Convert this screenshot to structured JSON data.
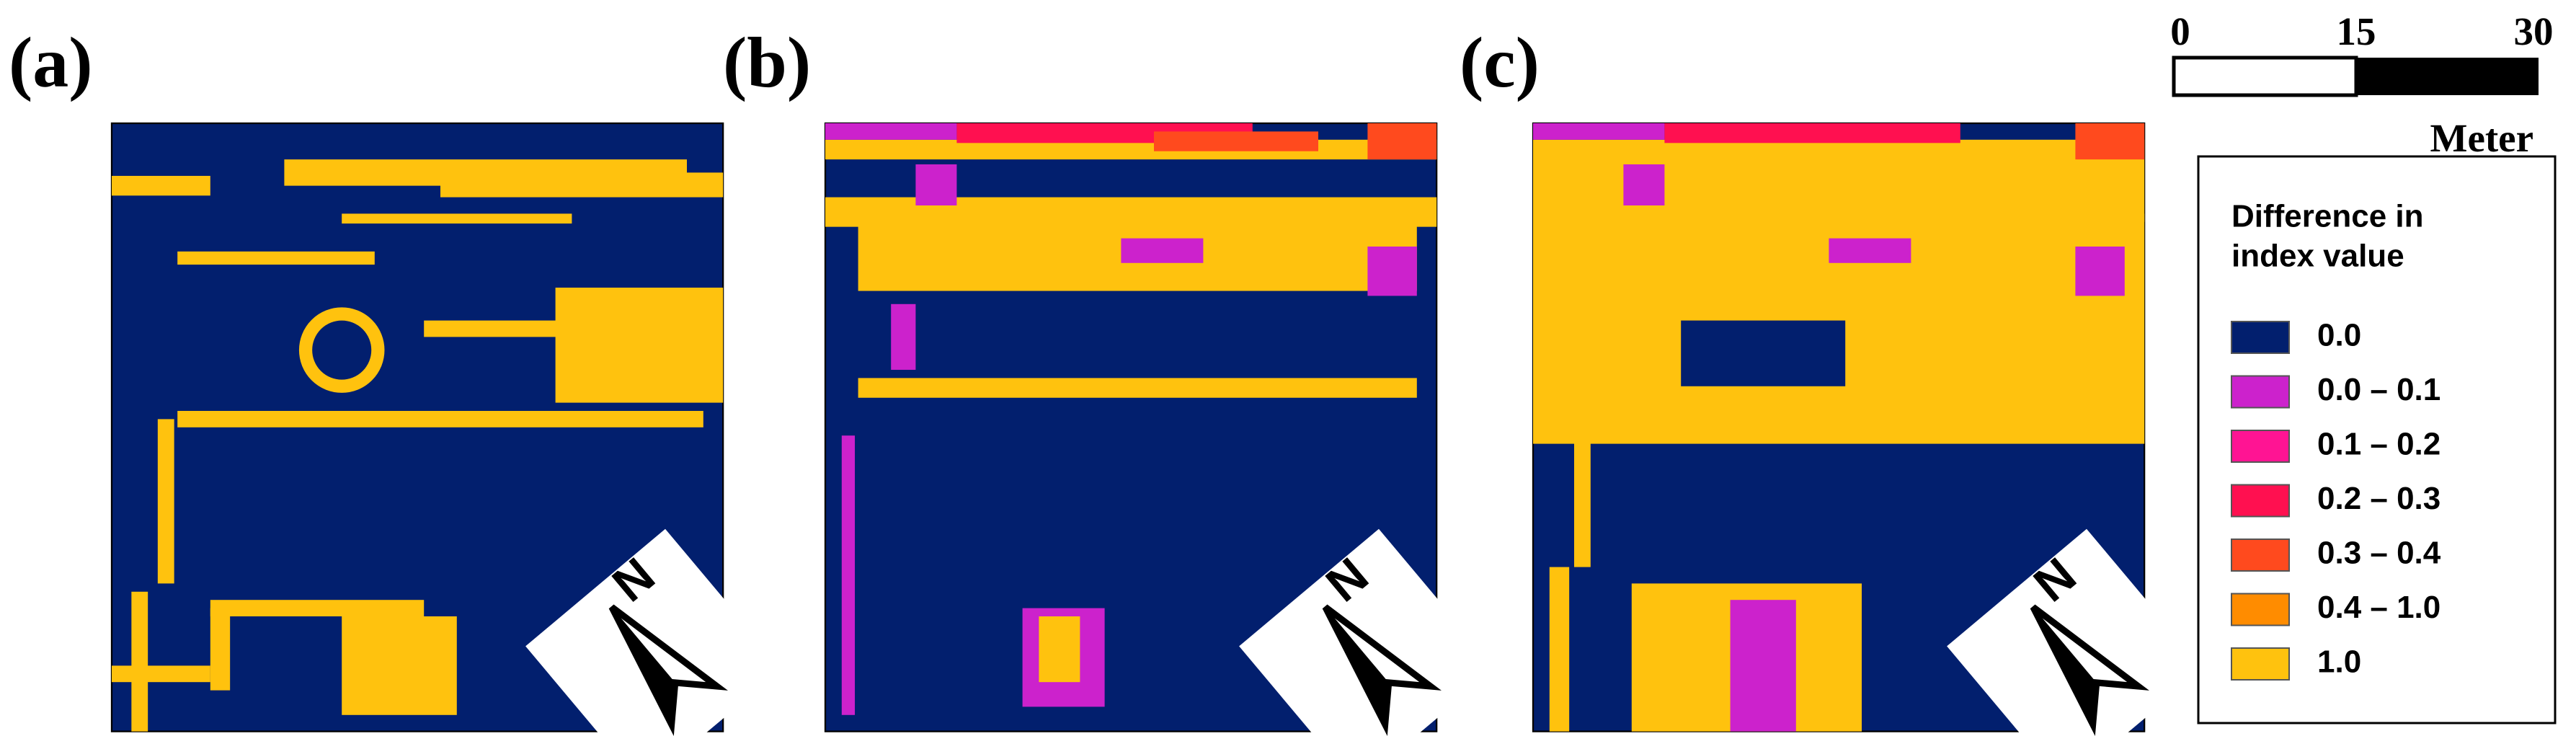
{
  "panels": [
    {
      "label": "(a)"
    },
    {
      "label": "(b)"
    },
    {
      "label": "(c)"
    }
  ],
  "scale_bar": {
    "ticks": [
      "0",
      "15",
      "30"
    ],
    "unit": "Meter"
  },
  "legend": {
    "title": [
      "Difference in",
      "index value"
    ],
    "items": [
      {
        "label": "0.0",
        "color": "#021f6e"
      },
      {
        "label": "0.0 – 0.1",
        "color": "#cc22cc"
      },
      {
        "label": "0.1 – 0.2",
        "color": "#ff1493"
      },
      {
        "label": "0.2 – 0.3",
        "color": "#ff1050"
      },
      {
        "label": "0.3 – 0.4",
        "color": "#ff4a1e"
      },
      {
        "label": "0.4 – 1.0",
        "color": "#ff8c00"
      },
      {
        "label": "1.0",
        "color": "#ffc20e"
      }
    ]
  }
}
